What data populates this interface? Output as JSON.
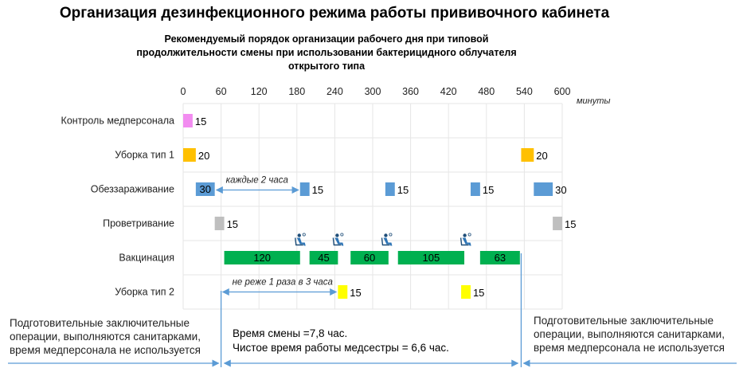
{
  "title": "Организация дезинфекционного режима работы прививочного кабинета",
  "subtitle": [
    "Рекомендуемый порядок организации рабочего дня при типовой",
    "продолжительности смены при использовании бактерицидного облучателя",
    "открытого типа"
  ],
  "chart_data": {
    "type": "bar",
    "xunit": "минуты",
    "xlim": [
      0,
      600
    ],
    "xticks": [
      0,
      60,
      120,
      180,
      240,
      300,
      360,
      420,
      480,
      540,
      600
    ],
    "grid": true,
    "categories": [
      "Контроль медперсонала",
      "Уборка тип 1",
      "Обеззараживание",
      "Проветривание",
      "Вакцинация",
      "Уборка тип 2"
    ],
    "bars": [
      {
        "row": 0,
        "start": 0,
        "value": 15,
        "label": "15",
        "color": "#f28cf0",
        "label_pos": "outside"
      },
      {
        "row": 1,
        "start": 0,
        "value": 20,
        "label": "20",
        "color": "#ffc000",
        "label_pos": "outside"
      },
      {
        "row": 1,
        "start": 535,
        "value": 20,
        "label": "20",
        "color": "#ffc000",
        "label_pos": "outside"
      },
      {
        "row": 2,
        "start": 20,
        "value": 30,
        "label": "30",
        "color": "#5b9bd5",
        "label_pos": "inside"
      },
      {
        "row": 2,
        "start": 185,
        "value": 15,
        "label": "15",
        "color": "#5b9bd5",
        "label_pos": "outside"
      },
      {
        "row": 2,
        "start": 320,
        "value": 15,
        "label": "15",
        "color": "#5b9bd5",
        "label_pos": "outside"
      },
      {
        "row": 2,
        "start": 455,
        "value": 15,
        "label": "15",
        "color": "#5b9bd5",
        "label_pos": "outside"
      },
      {
        "row": 2,
        "start": 555,
        "value": 30,
        "label": "30",
        "color": "#5b9bd5",
        "label_pos": "outside"
      },
      {
        "row": 3,
        "start": 50,
        "value": 15,
        "label": "15",
        "color": "#bfbfbf",
        "label_pos": "outside"
      },
      {
        "row": 3,
        "start": 585,
        "value": 15,
        "label": "15",
        "color": "#bfbfbf",
        "label_pos": "outside"
      },
      {
        "row": 4,
        "start": 65,
        "value": 120,
        "label": "120",
        "color": "#00b050",
        "label_pos": "inside"
      },
      {
        "row": 4,
        "start": 200,
        "value": 45,
        "label": "45",
        "color": "#00b050",
        "label_pos": "inside"
      },
      {
        "row": 4,
        "start": 265,
        "value": 60,
        "label": "60",
        "color": "#00b050",
        "label_pos": "inside"
      },
      {
        "row": 4,
        "start": 340,
        "value": 105,
        "label": "105",
        "color": "#00b050",
        "label_pos": "inside"
      },
      {
        "row": 4,
        "start": 470,
        "value": 63,
        "label": "63",
        "color": "#00b050",
        "label_pos": "inside"
      },
      {
        "row": 5,
        "start": 245,
        "value": 15,
        "label": "15",
        "color": "#ffff00",
        "label_pos": "outside"
      },
      {
        "row": 5,
        "start": 440,
        "value": 15,
        "label": "15",
        "color": "#ffff00",
        "label_pos": "outside"
      }
    ],
    "annotations": [
      {
        "text": "каждые 2 часа",
        "row": 2,
        "from": 50,
        "to": 185
      },
      {
        "text": "не реже 1 раза в 3 часа",
        "row": 5,
        "from": 60,
        "to": 245
      }
    ],
    "patient_icon_positions": [
      185,
      245,
      322,
      447
    ],
    "patient_icon_name": "patient-chair-icon"
  },
  "notes": {
    "left": "Подготовительные заключительные операции, выполняются санитарками, время медперсонала не используется",
    "right": "Подготовительные заключительные операции, выполняются санитарками, время медперсонала не используется",
    "shift_time": "Время смены =7,8 час.",
    "nurse_time": "Чистое время работы медсестры = 6,6 час."
  },
  "bottom_span": {
    "from": 60,
    "to": 535
  }
}
